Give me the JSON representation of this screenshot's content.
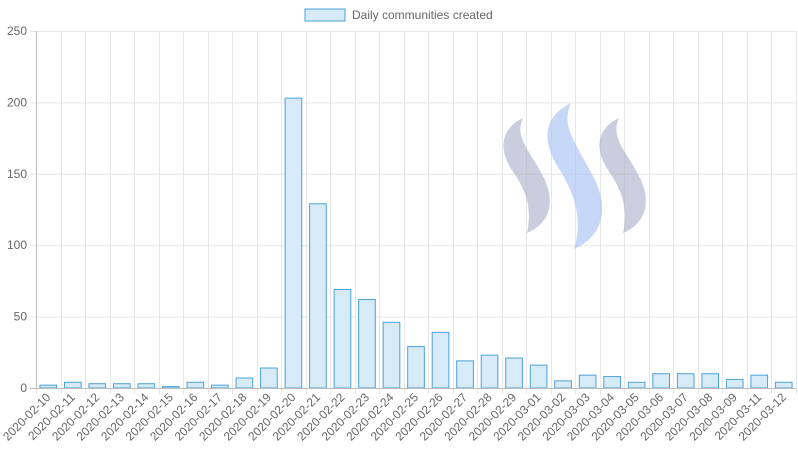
{
  "chart_data": {
    "type": "bar",
    "title": "",
    "xlabel": "",
    "ylabel": "",
    "ylim": [
      0,
      250
    ],
    "y_ticks": [
      0,
      50,
      100,
      150,
      200,
      250
    ],
    "grid": true,
    "legend_position": "top-center",
    "categories": [
      "2020-02-10",
      "2020-02-11",
      "2020-02-12",
      "2020-02-13",
      "2020-02-14",
      "2020-02-15",
      "2020-02-16",
      "2020-02-17",
      "2020-02-18",
      "2020-02-19",
      "2020-02-20",
      "2020-02-21",
      "2020-02-22",
      "2020-02-23",
      "2020-02-24",
      "2020-02-25",
      "2020-02-26",
      "2020-02-27",
      "2020-02-28",
      "2020-02-29",
      "2020-03-01",
      "2020-03-02",
      "2020-03-03",
      "2020-03-04",
      "2020-03-05",
      "2020-03-06",
      "2020-03-07",
      "2020-03-08",
      "2020-03-09",
      "2020-03-11",
      "2020-03-12"
    ],
    "series": [
      {
        "name": "Daily communities created",
        "values": [
          2,
          4,
          3,
          3,
          3,
          1,
          4,
          2,
          7,
          14,
          203,
          129,
          69,
          62,
          46,
          29,
          39,
          19,
          23,
          21,
          16,
          5,
          9,
          8,
          4,
          10,
          10,
          10,
          6,
          9,
          4
        ]
      }
    ],
    "colors": {
      "bar_fill": "#d6eaf8",
      "bar_stroke": "#4aa3d8",
      "grid": "#e6e6e6",
      "axis": "#bbbbbb",
      "tick_text": "#666666",
      "legend_text": "#666666"
    }
  },
  "watermark": {
    "icon": "steem-logo-icon",
    "colors": [
      "#aeb3cc",
      "#a9c3f5",
      "#aeb3cc"
    ]
  }
}
